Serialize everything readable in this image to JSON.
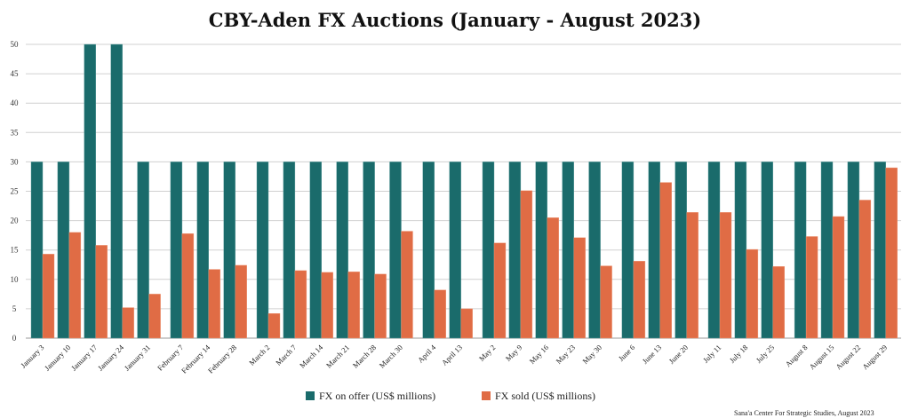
{
  "chart_data": {
    "type": "bar",
    "title": "CBY-Aden FX Auctions (January - August 2023)",
    "xlabel": "",
    "ylabel": "",
    "ylim": [
      0,
      50
    ],
    "yticks": [
      0,
      5,
      10,
      15,
      20,
      25,
      30,
      35,
      40,
      45,
      50
    ],
    "grid": true,
    "legend_position": "bottom",
    "categories": [
      "January 3",
      "January 10",
      "January 17",
      "January 24",
      "January 31",
      "February 7",
      "February 14",
      "February 28",
      "March 2",
      "March 7",
      "March 14",
      "March 21",
      "March 28",
      "March 30",
      "April 4",
      "April 13",
      "May 2",
      "May 9",
      "May 16",
      "May 23",
      "May 30",
      "June 6",
      "June 13",
      "June 20",
      "July 11",
      "July 18",
      "July 25",
      "August 8",
      "August 15",
      "August 22",
      "August 29"
    ],
    "series": [
      {
        "name": "FX on offer (US$ millions)",
        "color": "#1a6b6b",
        "values": [
          30,
          30,
          50,
          50,
          30,
          30,
          30,
          30,
          30,
          30,
          30,
          30,
          30,
          30,
          30,
          30,
          30,
          30,
          30,
          30,
          30,
          30,
          30,
          30,
          30,
          30,
          30,
          30,
          30,
          30,
          30
        ]
      },
      {
        "name": "FX sold (US$ millions)",
        "color": "#e06c45",
        "values": [
          14.3,
          18.0,
          15.8,
          5.2,
          7.5,
          17.8,
          11.7,
          12.4,
          4.2,
          11.5,
          11.2,
          11.3,
          10.9,
          18.2,
          8.2,
          5.0,
          16.2,
          25.1,
          20.5,
          17.1,
          12.3,
          13.1,
          26.5,
          21.4,
          21.4,
          15.1,
          12.2,
          17.3,
          20.7,
          23.5,
          29.0
        ]
      }
    ]
  },
  "credit": "Sana'a Center For Strategic Studies, August 2023",
  "credit_symbol": "©"
}
